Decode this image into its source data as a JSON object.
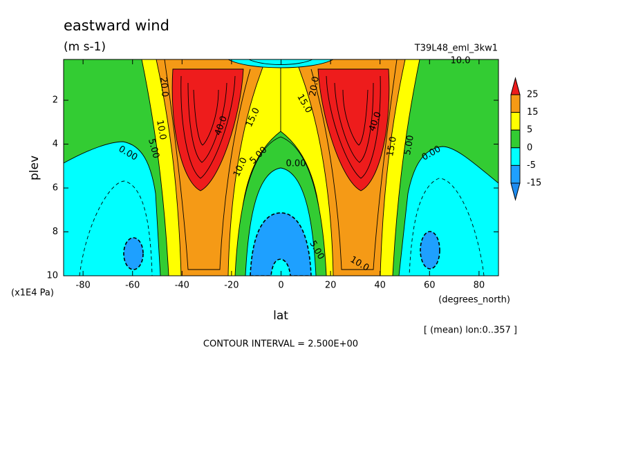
{
  "chart_data": {
    "type": "contour",
    "title": "eastward wind",
    "subtitle": "(m s-1)",
    "run_label": "T39L48_eml_3kw1",
    "y_label": "plev",
    "y_units": "(x1E4 Pa)",
    "x_label": "lat",
    "x_units": "(degrees_north)",
    "averaging_note": "[ (mean) lon:0..357 ]",
    "contour_note": "CONTOUR INTERVAL = 2.500E+00",
    "xlim": [
      -87.86,
      87.86
    ],
    "xticks": [
      -80,
      -60,
      -40,
      -20,
      0,
      20,
      40,
      60,
      80
    ],
    "ylim": [
      10,
      0.14
    ],
    "yticks": [
      2,
      4,
      6,
      8,
      10
    ],
    "levels": [
      25,
      15,
      5,
      0,
      -5,
      -15
    ],
    "level_colors": [
      "#ee1c1c",
      "#f59a16",
      "#ffff00",
      "#33cc33",
      "#00ffff",
      "#1ea0ff",
      "#1e8cf0"
    ],
    "contour_labels": [
      "0.00",
      "5.00",
      "10.0",
      "20.0",
      "40.0",
      "15.0",
      "10.0",
      "5.00",
      "0.00",
      "5.00",
      "10.0",
      "15.0",
      "20.0",
      "40.0",
      "15.0",
      "5.00",
      "0.00",
      "10.0"
    ]
  }
}
